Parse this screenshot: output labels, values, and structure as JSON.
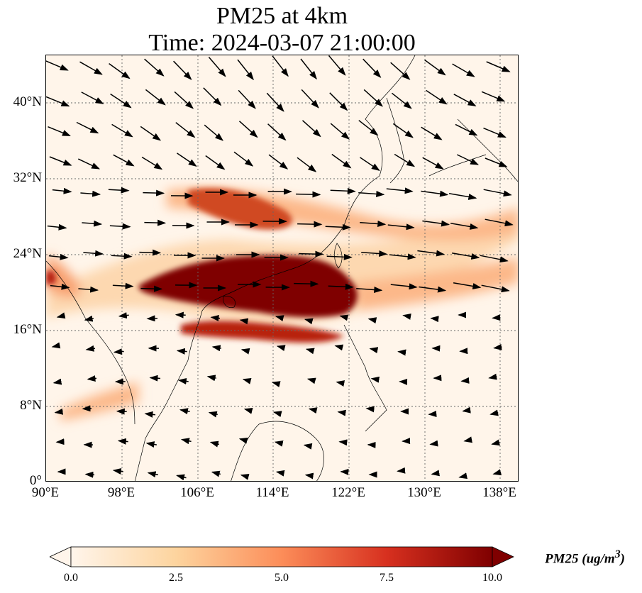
{
  "title_line1": "PM25 at 4km",
  "title_line2": "Time: 2024-03-07 21:00:00",
  "lat_ticks": [
    "40°N",
    "32°N",
    "24°N",
    "16°N",
    "8°N",
    "0°"
  ],
  "lon_ticks": [
    "90°E",
    "98°E",
    "106°E",
    "114°E",
    "122°E",
    "130°E",
    "138°E"
  ],
  "colorbar": {
    "label": "PM25 (ug/m",
    "label_sup": "3",
    "label_close": ")",
    "ticks": [
      "0.0",
      "2.5",
      "5.0",
      "7.5",
      "10.0"
    ],
    "min": 0,
    "max": 10,
    "colormap": [
      "#fff5eb",
      "#fdd49e",
      "#fc8d59",
      "#d7301f",
      "#7f0000"
    ]
  },
  "map_extent": {
    "lon": [
      90,
      140
    ],
    "lat": [
      0,
      45
    ]
  }
}
